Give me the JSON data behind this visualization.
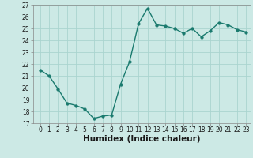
{
  "x": [
    0,
    1,
    2,
    3,
    4,
    5,
    6,
    7,
    8,
    9,
    10,
    11,
    12,
    13,
    14,
    15,
    16,
    17,
    18,
    19,
    20,
    21,
    22,
    23
  ],
  "y": [
    21.5,
    21.0,
    19.9,
    18.7,
    18.5,
    18.2,
    17.4,
    17.6,
    17.7,
    20.3,
    22.2,
    25.4,
    26.7,
    25.3,
    25.2,
    25.0,
    24.6,
    25.0,
    24.3,
    24.8,
    25.5,
    25.3,
    24.9,
    24.7
  ],
  "line_color": "#1a7a6e",
  "marker": "o",
  "markersize": 2.5,
  "linewidth": 1.0,
  "bg_color": "#cce9e5",
  "grid_color": "#aad4cf",
  "xlabel": "Humidex (Indice chaleur)",
  "ylim": [
    17,
    27
  ],
  "yticks": [
    17,
    18,
    19,
    20,
    21,
    22,
    23,
    24,
    25,
    26,
    27
  ],
  "xticks": [
    0,
    1,
    2,
    3,
    4,
    5,
    6,
    7,
    8,
    9,
    10,
    11,
    12,
    13,
    14,
    15,
    16,
    17,
    18,
    19,
    20,
    21,
    22,
    23
  ],
  "tick_fontsize": 5.5,
  "xlabel_fontsize": 7.5,
  "tick_color": "#1a1a1a"
}
